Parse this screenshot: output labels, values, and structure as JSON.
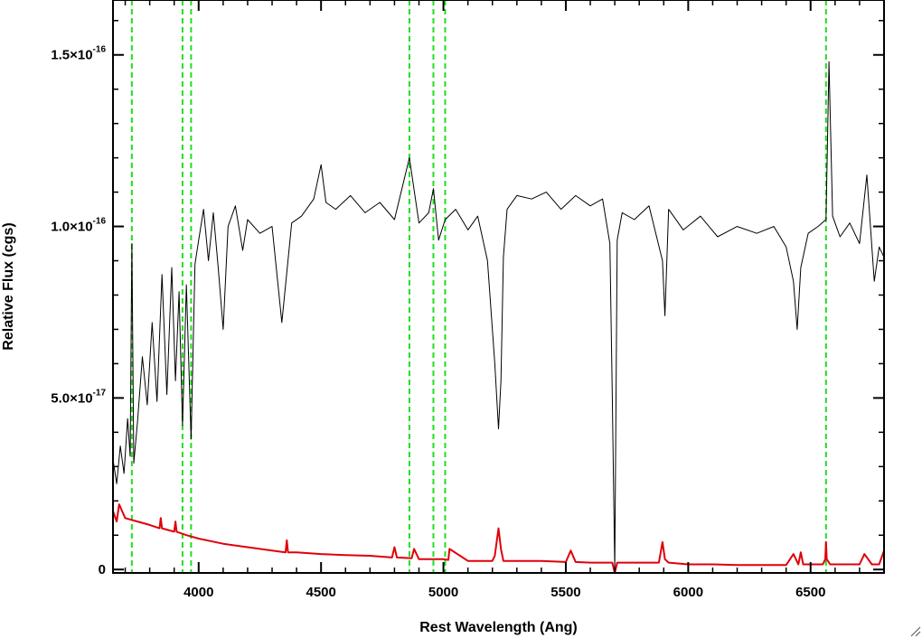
{
  "chart_data": {
    "type": "line",
    "title": "",
    "xlabel": "Rest Wavelength (Ang)",
    "ylabel": "Relative Flux (cgs)",
    "xlim": [
      3650,
      6800
    ],
    "ylim": [
      -1e-18,
      1.66e-16
    ],
    "x_ticks": [
      {
        "value": 4000,
        "label": "4000"
      },
      {
        "value": 4500,
        "label": "4500"
      },
      {
        "value": 5000,
        "label": "5000"
      },
      {
        "value": 5500,
        "label": "5500"
      },
      {
        "value": 6000,
        "label": "6000"
      },
      {
        "value": 6500,
        "label": "6500"
      }
    ],
    "y_ticks": [
      {
        "value": 0,
        "mantissa": "0",
        "exponent": ""
      },
      {
        "value": 5e-17,
        "mantissa": "5.0×10",
        "exponent": "-17"
      },
      {
        "value": 1e-16,
        "mantissa": "1.0×10",
        "exponent": "-16"
      },
      {
        "value": 1.5e-16,
        "mantissa": "1.5×10",
        "exponent": "-16"
      }
    ],
    "grid": false,
    "reference_lines": [
      3727,
      3934,
      3969,
      4861,
      4959,
      5007,
      6563
    ],
    "series": [
      {
        "color": "#000000",
        "x": [
          3650,
          3665,
          3680,
          3695,
          3710,
          3720,
          3727,
          3735,
          3750,
          3770,
          3790,
          3810,
          3830,
          3850,
          3870,
          3890,
          3905,
          3920,
          3934,
          3950,
          3969,
          3985,
          4000,
          4020,
          4040,
          4060,
          4080,
          4100,
          4120,
          4150,
          4180,
          4200,
          4250,
          4300,
          4340,
          4380,
          4420,
          4470,
          4500,
          4520,
          4560,
          4620,
          4680,
          4740,
          4800,
          4861,
          4900,
          4940,
          4959,
          4980,
          5007,
          5050,
          5100,
          5140,
          5180,
          5210,
          5225,
          5235,
          5245,
          5260,
          5300,
          5360,
          5420,
          5480,
          5540,
          5600,
          5650,
          5680,
          5690,
          5700,
          5710,
          5730,
          5780,
          5840,
          5895,
          5905,
          5920,
          5980,
          6050,
          6120,
          6200,
          6280,
          6350,
          6400,
          6430,
          6445,
          6460,
          6490,
          6530,
          6563,
          6575,
          6590,
          6620,
          6660,
          6700,
          6730,
          6760,
          6780,
          6800
        ],
        "values": [
          3.2e-17,
          2.5e-17,
          3.6e-17,
          2.8e-17,
          4.4e-17,
          3.3e-17,
          9.5e-17,
          3.1e-17,
          4.3e-17,
          6.2e-17,
          4.8e-17,
          7.2e-17,
          4.9e-17,
          8.6e-17,
          5.1e-17,
          8.8e-17,
          5.5e-17,
          8.1e-17,
          4.2e-17,
          8.3e-17,
          3.8e-17,
          8.9e-17,
          9.6e-17,
          1.05e-16,
          9e-17,
          1.04e-16,
          8.8e-17,
          7e-17,
          1e-16,
          1.06e-16,
          9.3e-17,
          1.02e-16,
          9.8e-17,
          1e-16,
          7.2e-17,
          1.01e-16,
          1.03e-16,
          1.08e-16,
          1.18e-16,
          1.07e-16,
          1.05e-16,
          1.09e-16,
          1.04e-16,
          1.07e-16,
          1.02e-16,
          1.2e-16,
          1.01e-16,
          1.04e-16,
          1.11e-16,
          9.6e-17,
          1.02e-16,
          1.05e-16,
          9.9e-17,
          1.03e-16,
          9e-17,
          6e-17,
          4.1e-17,
          5.5e-17,
          9.1e-17,
          1.05e-16,
          1.09e-16,
          1.08e-16,
          1.1e-16,
          1.05e-16,
          1.09e-16,
          1.06e-16,
          1.08e-16,
          9.5e-17,
          5e-17,
          0.0,
          9.6e-17,
          1.04e-16,
          1.02e-16,
          1.06e-16,
          9e-17,
          7.4e-17,
          1.05e-16,
          9.9e-17,
          1.03e-16,
          9.7e-17,
          1e-16,
          9.8e-17,
          1e-16,
          9.4e-17,
          8.4e-17,
          7e-17,
          8.8e-17,
          9.8e-17,
          1e-16,
          1.02e-16,
          1.48e-16,
          1.03e-16,
          9.7e-17,
          1.01e-16,
          9.5e-17,
          1.15e-16,
          8.4e-17,
          9.4e-17,
          9.1e-17
        ]
      },
      {
        "color": "#e0000a",
        "x": [
          3650,
          3665,
          3675,
          3700,
          3750,
          3800,
          3840,
          3845,
          3850,
          3900,
          3905,
          3910,
          3950,
          4000,
          4100,
          4200,
          4300,
          4355,
          4360,
          4365,
          4400,
          4500,
          4600,
          4700,
          4790,
          4800,
          4810,
          4870,
          4880,
          4900,
          5000,
          5020,
          5025,
          5100,
          5200,
          5210,
          5225,
          5235,
          5245,
          5300,
          5400,
          5500,
          5520,
          5540,
          5600,
          5660,
          5690,
          5700,
          5710,
          5720,
          5800,
          5880,
          5895,
          5905,
          5920,
          6000,
          6100,
          6200,
          6300,
          6400,
          6430,
          6450,
          6460,
          6470,
          6500,
          6550,
          6560,
          6563,
          6566,
          6580,
          6650,
          6700,
          6720,
          6750,
          6780,
          6800
        ],
        "values": [
          1.7e-17,
          1.4e-17,
          1.9e-17,
          1.5e-17,
          1.4e-17,
          1.3e-17,
          1.2e-17,
          1.5e-17,
          1.2e-17,
          1.1e-17,
          1.4e-17,
          1.1e-17,
          1e-17,
          9e-18,
          7.5e-18,
          6.5e-18,
          5.5e-18,
          5e-18,
          8.5e-18,
          5e-18,
          5e-18,
          4.5e-18,
          4.2e-18,
          4e-18,
          3.5e-18,
          6.5e-18,
          3.5e-18,
          3.3e-18,
          6e-18,
          3e-18,
          3e-18,
          2.8e-18,
          6e-18,
          2.5e-18,
          2.5e-18,
          4e-18,
          1.2e-17,
          6e-18,
          2.5e-18,
          2.5e-18,
          2.5e-18,
          2.2e-18,
          5.5e-18,
          2.2e-18,
          2e-18,
          2e-18,
          2e-18,
          -1e-18,
          2e-18,
          2e-18,
          2e-18,
          2e-18,
          8e-18,
          3e-18,
          2e-18,
          1.5e-18,
          1.5e-18,
          1.3e-18,
          1.3e-18,
          1.3e-18,
          4.5e-18,
          1.5e-18,
          5e-18,
          1.5e-18,
          1.5e-18,
          1.5e-18,
          3e-18,
          8e-18,
          3e-18,
          1.5e-18,
          1.5e-18,
          1.5e-18,
          4.5e-18,
          1.5e-18,
          1.5e-18,
          5.5e-18
        ]
      }
    ]
  }
}
